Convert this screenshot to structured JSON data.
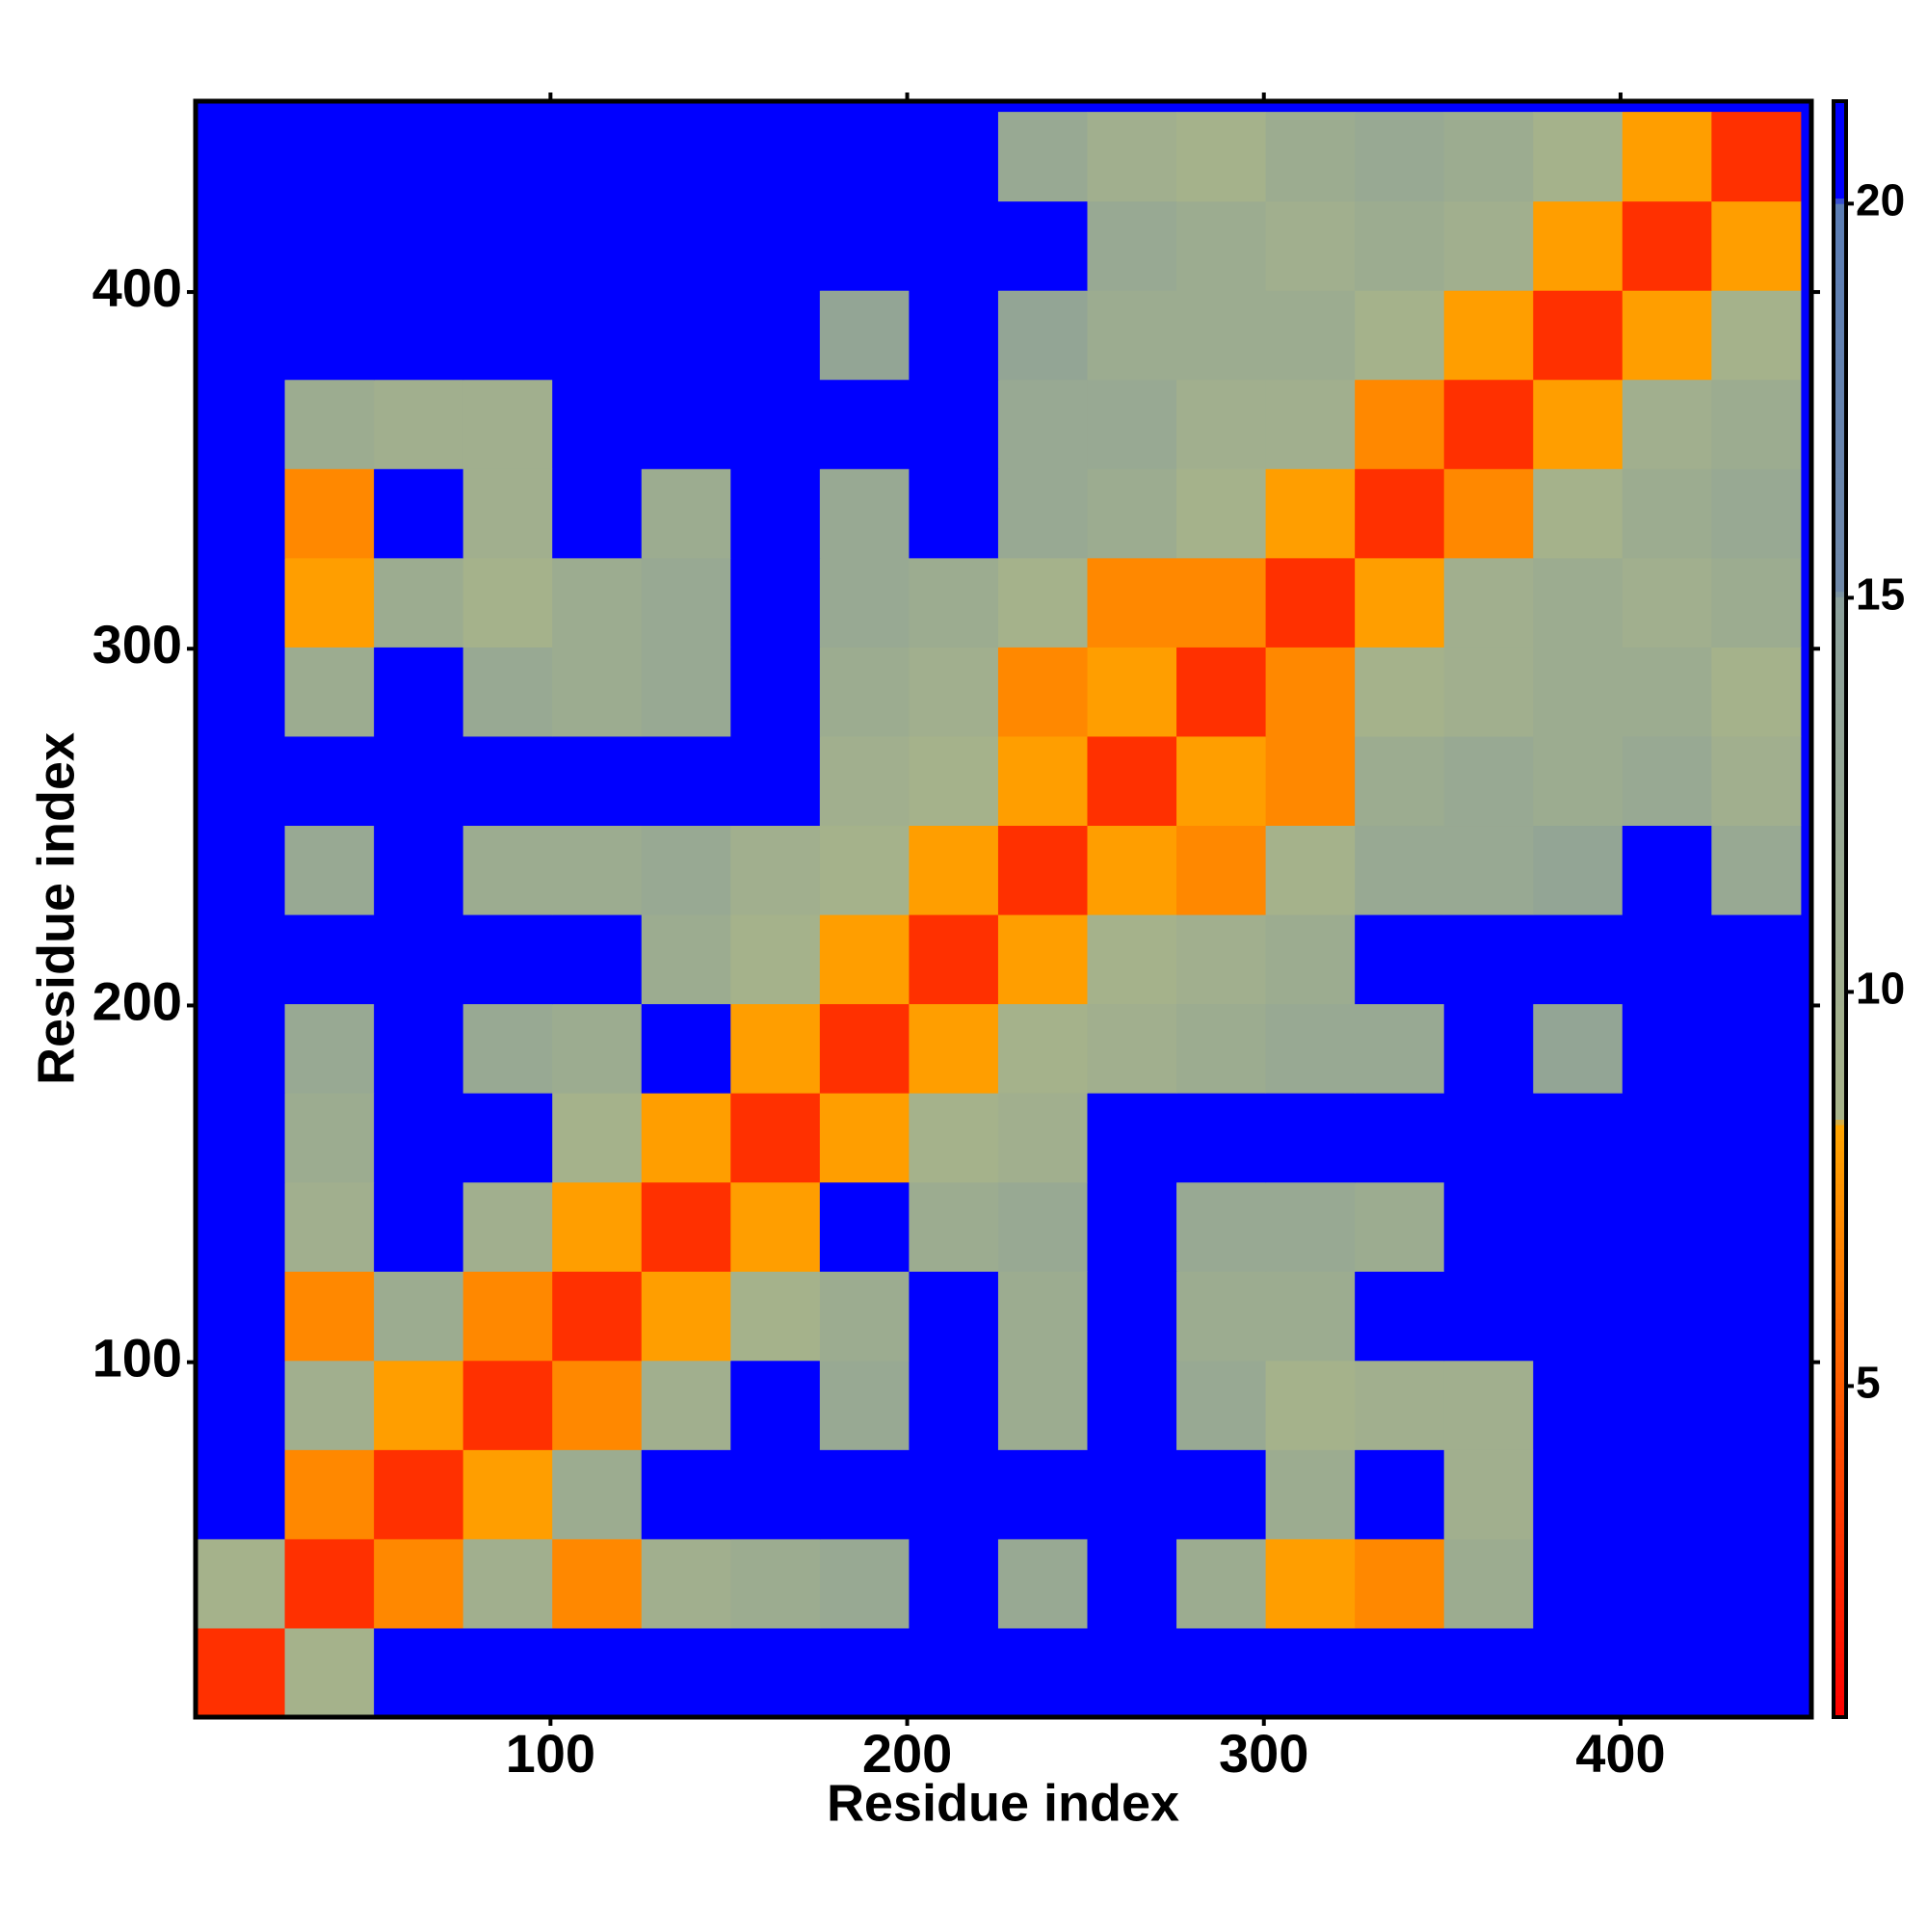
{
  "chart_data": {
    "type": "heatmap",
    "xlabel": "Residue index",
    "ylabel": "Residue index",
    "xlim": [
      0.5,
      453.5
    ],
    "ylim": [
      0.5,
      453.5
    ],
    "xticks": [
      100,
      200,
      300,
      400
    ],
    "yticks": [
      100,
      200,
      300,
      400
    ],
    "bins": [
      0.5,
      25.5,
      50.5,
      75.5,
      100.5,
      125.5,
      150.5,
      175.5,
      200.5,
      225.5,
      250.5,
      275.5,
      300.5,
      325.5,
      350.5,
      375.5,
      400.5,
      425.5,
      450.5
    ],
    "z": [
      [
        3,
        9,
        21,
        21,
        21,
        21,
        21,
        21,
        21,
        21,
        21,
        21,
        21,
        21,
        21,
        21,
        21,
        21
      ],
      [
        9,
        3,
        7,
        10,
        7,
        10,
        11,
        12,
        21,
        12,
        21,
        11,
        8,
        7,
        11,
        21,
        21,
        21
      ],
      [
        21,
        7,
        3,
        8,
        11,
        21,
        21,
        21,
        21,
        21,
        21,
        21,
        11,
        21,
        10,
        21,
        21,
        21
      ],
      [
        21,
        10,
        8,
        3,
        7,
        10,
        21,
        12,
        21,
        11,
        21,
        12,
        9,
        10,
        10,
        21,
        21,
        21
      ],
      [
        21,
        7,
        11,
        7,
        3,
        8,
        9,
        11,
        21,
        11,
        21,
        11,
        11,
        21,
        21,
        21,
        21,
        21
      ],
      [
        21,
        10,
        21,
        10,
        8,
        3,
        8,
        21,
        11,
        12,
        21,
        12,
        12,
        11,
        21,
        21,
        21,
        21
      ],
      [
        21,
        11,
        21,
        21,
        9,
        8,
        3,
        8,
        9,
        10,
        21,
        21,
        21,
        21,
        21,
        21,
        21,
        21
      ],
      [
        21,
        12,
        21,
        12,
        11,
        21,
        8,
        3,
        8,
        9,
        10,
        11,
        12,
        12,
        21,
        13,
        21,
        21
      ],
      [
        21,
        21,
        21,
        21,
        21,
        11,
        9,
        8,
        3,
        8,
        9,
        10,
        11,
        21,
        21,
        21,
        21,
        21
      ],
      [
        21,
        12,
        21,
        11,
        11,
        12,
        10,
        9,
        8,
        3,
        8,
        7,
        9,
        12,
        12,
        13,
        21,
        12
      ],
      [
        21,
        21,
        21,
        21,
        21,
        21,
        21,
        10,
        9,
        8,
        3,
        8,
        7,
        11,
        12,
        11,
        12,
        10
      ],
      [
        21,
        11,
        21,
        12,
        11,
        12,
        21,
        11,
        10,
        7,
        8,
        3,
        7,
        9,
        10,
        11,
        11,
        9
      ],
      [
        21,
        8,
        11,
        9,
        11,
        12,
        21,
        12,
        11,
        9,
        7,
        7,
        3,
        8,
        10,
        11,
        10,
        11
      ],
      [
        21,
        7,
        21,
        10,
        21,
        11,
        21,
        12,
        21,
        12,
        11,
        9,
        8,
        3,
        7,
        9,
        11,
        12
      ],
      [
        21,
        11,
        10,
        10,
        21,
        21,
        21,
        21,
        21,
        12,
        12,
        10,
        10,
        7,
        3,
        8,
        10,
        11
      ],
      [
        21,
        21,
        21,
        21,
        21,
        21,
        21,
        13,
        21,
        13,
        11,
        11,
        11,
        9,
        8,
        3,
        8,
        9
      ],
      [
        21,
        21,
        21,
        21,
        21,
        21,
        21,
        21,
        21,
        21,
        12,
        11,
        10,
        11,
        10,
        8,
        3,
        8
      ],
      [
        21,
        21,
        21,
        21,
        21,
        21,
        21,
        21,
        21,
        12,
        10,
        9,
        11,
        12,
        11,
        9,
        8,
        3
      ]
    ],
    "zlim": [
      0.8,
      21.3
    ],
    "zticks": [
      5,
      10,
      15,
      20
    ],
    "colorscale": [
      [
        0.8,
        "#ff0000"
      ],
      [
        8.3,
        "#ffa500"
      ],
      [
        8.4,
        "#a8b48a"
      ],
      [
        15,
        "#8a9f9a"
      ],
      [
        15.1,
        "#6f88a8"
      ],
      [
        20,
        "#5b7db4"
      ],
      [
        20.1,
        "#0000ff"
      ],
      [
        21.3,
        "#0000ff"
      ]
    ]
  }
}
